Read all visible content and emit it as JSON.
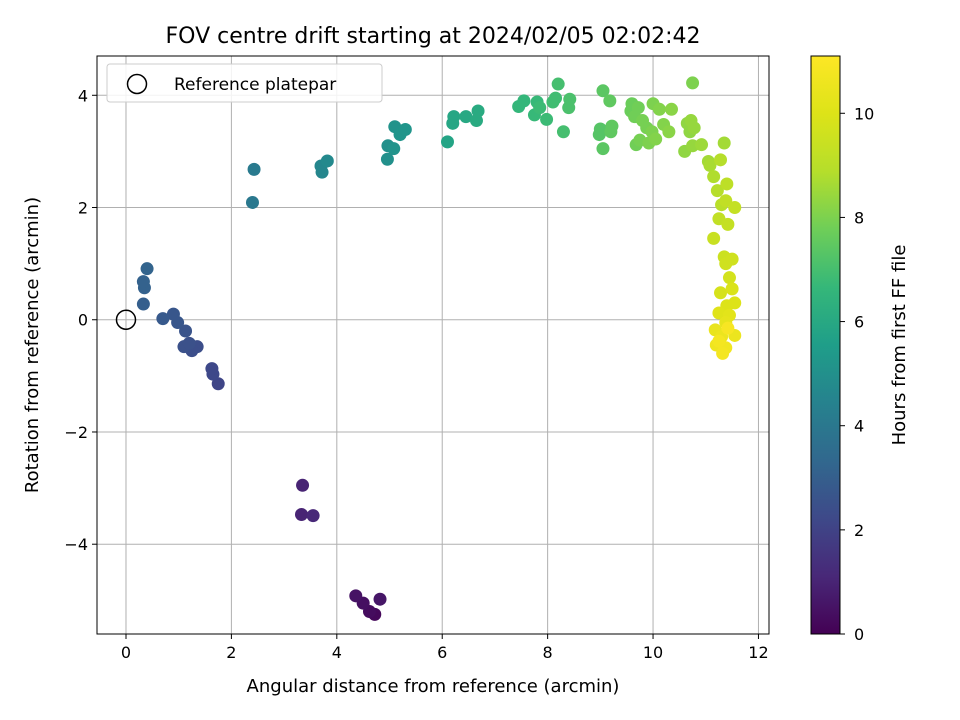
{
  "chart_data": {
    "type": "scatter",
    "title": "FOV centre drift starting at 2024/02/05 02:02:42",
    "xlabel": "Angular distance from reference (arcmin)",
    "ylabel": "Rotation from reference (arcmin)",
    "colorbar_label": "Hours from first FF file",
    "xlim": [
      -0.55,
      12.2
    ],
    "ylim": [
      -5.6,
      4.7
    ],
    "xticks": [
      0,
      2,
      4,
      6,
      8,
      10,
      12
    ],
    "xtick_labels": [
      "0",
      "2",
      "4",
      "6",
      "8",
      "10",
      "12"
    ],
    "yticks": [
      -4,
      -2,
      0,
      2,
      4
    ],
    "ytick_labels": [
      "−4",
      "−2",
      "0",
      "2",
      "4"
    ],
    "colorbar_range": [
      0,
      11.1
    ],
    "colorbar_ticks": [
      0,
      2,
      4,
      6,
      8,
      10
    ],
    "colorbar_tick_labels": [
      "0",
      "2",
      "4",
      "6",
      "8",
      "10"
    ],
    "colormap": "viridis",
    "grid": true,
    "legend": {
      "placement": "top-left",
      "entries": [
        "Reference platepar"
      ]
    },
    "reference_point": {
      "x": 0,
      "y": 0
    },
    "points": [
      {
        "x": 4.72,
        "y": -5.25,
        "c": 0.2
      },
      {
        "x": 4.62,
        "y": -5.2,
        "c": 0.3
      },
      {
        "x": 4.5,
        "y": -5.05,
        "c": 0.4
      },
      {
        "x": 4.36,
        "y": -4.92,
        "c": 0.5
      },
      {
        "x": 4.82,
        "y": -4.98,
        "c": 0.6
      },
      {
        "x": 3.35,
        "y": -2.95,
        "c": 1.0
      },
      {
        "x": 3.33,
        "y": -3.47,
        "c": 1.0
      },
      {
        "x": 3.55,
        "y": -3.49,
        "c": 1.1
      },
      {
        "x": 1.75,
        "y": -1.14,
        "c": 2.1
      },
      {
        "x": 1.65,
        "y": -0.97,
        "c": 2.2
      },
      {
        "x": 1.63,
        "y": -0.87,
        "c": 2.2
      },
      {
        "x": 1.35,
        "y": -0.48,
        "c": 2.4
      },
      {
        "x": 1.25,
        "y": -0.55,
        "c": 2.4
      },
      {
        "x": 1.1,
        "y": -0.48,
        "c": 2.5
      },
      {
        "x": 1.2,
        "y": -0.42,
        "c": 2.5
      },
      {
        "x": 1.13,
        "y": -0.2,
        "c": 2.6
      },
      {
        "x": 0.98,
        "y": -0.05,
        "c": 2.7
      },
      {
        "x": 0.9,
        "y": 0.1,
        "c": 2.7
      },
      {
        "x": 0.7,
        "y": 0.02,
        "c": 2.8
      },
      {
        "x": 0.33,
        "y": 0.28,
        "c": 3.0
      },
      {
        "x": 0.35,
        "y": 0.57,
        "c": 3.1
      },
      {
        "x": 0.33,
        "y": 0.68,
        "c": 3.1
      },
      {
        "x": 0.4,
        "y": 0.91,
        "c": 3.2
      },
      {
        "x": 2.4,
        "y": 2.09,
        "c": 4.0
      },
      {
        "x": 2.43,
        "y": 2.68,
        "c": 4.1
      },
      {
        "x": 3.72,
        "y": 2.63,
        "c": 4.6
      },
      {
        "x": 3.7,
        "y": 2.74,
        "c": 4.6
      },
      {
        "x": 3.82,
        "y": 2.83,
        "c": 4.7
      },
      {
        "x": 4.96,
        "y": 2.86,
        "c": 5.0
      },
      {
        "x": 4.97,
        "y": 3.1,
        "c": 5.0
      },
      {
        "x": 5.08,
        "y": 3.05,
        "c": 5.1
      },
      {
        "x": 5.1,
        "y": 3.44,
        "c": 5.1
      },
      {
        "x": 5.2,
        "y": 3.3,
        "c": 5.2
      },
      {
        "x": 5.3,
        "y": 3.39,
        "c": 5.2
      },
      {
        "x": 6.1,
        "y": 3.17,
        "c": 5.8
      },
      {
        "x": 6.2,
        "y": 3.5,
        "c": 5.9
      },
      {
        "x": 6.22,
        "y": 3.62,
        "c": 5.9
      },
      {
        "x": 6.45,
        "y": 3.62,
        "c": 6.0
      },
      {
        "x": 6.65,
        "y": 3.55,
        "c": 6.1
      },
      {
        "x": 6.68,
        "y": 3.72,
        "c": 6.1
      },
      {
        "x": 7.45,
        "y": 3.8,
        "c": 6.6
      },
      {
        "x": 7.55,
        "y": 3.9,
        "c": 6.6
      },
      {
        "x": 7.75,
        "y": 3.65,
        "c": 6.7
      },
      {
        "x": 7.8,
        "y": 3.88,
        "c": 6.7
      },
      {
        "x": 7.85,
        "y": 3.78,
        "c": 6.8
      },
      {
        "x": 7.98,
        "y": 3.57,
        "c": 6.8
      },
      {
        "x": 8.1,
        "y": 3.88,
        "c": 6.9
      },
      {
        "x": 8.15,
        "y": 3.95,
        "c": 6.9
      },
      {
        "x": 8.2,
        "y": 4.2,
        "c": 7.0
      },
      {
        "x": 8.3,
        "y": 3.35,
        "c": 7.0
      },
      {
        "x": 8.4,
        "y": 3.78,
        "c": 7.1
      },
      {
        "x": 8.42,
        "y": 3.93,
        "c": 7.1
      },
      {
        "x": 8.98,
        "y": 3.3,
        "c": 7.3
      },
      {
        "x": 9.0,
        "y": 3.4,
        "c": 7.3
      },
      {
        "x": 9.05,
        "y": 3.05,
        "c": 7.4
      },
      {
        "x": 9.05,
        "y": 4.08,
        "c": 7.4
      },
      {
        "x": 9.18,
        "y": 3.9,
        "c": 7.5
      },
      {
        "x": 9.2,
        "y": 3.35,
        "c": 7.5
      },
      {
        "x": 9.22,
        "y": 3.45,
        "c": 7.5
      },
      {
        "x": 9.58,
        "y": 3.72,
        "c": 7.7
      },
      {
        "x": 9.6,
        "y": 3.85,
        "c": 7.7
      },
      {
        "x": 9.65,
        "y": 3.62,
        "c": 7.8
      },
      {
        "x": 9.68,
        "y": 3.12,
        "c": 7.8
      },
      {
        "x": 9.72,
        "y": 3.78,
        "c": 7.8
      },
      {
        "x": 9.75,
        "y": 3.2,
        "c": 7.9
      },
      {
        "x": 9.8,
        "y": 3.55,
        "c": 7.9
      },
      {
        "x": 9.88,
        "y": 3.42,
        "c": 7.9
      },
      {
        "x": 9.92,
        "y": 3.15,
        "c": 8.0
      },
      {
        "x": 9.98,
        "y": 3.35,
        "c": 8.0
      },
      {
        "x": 10.0,
        "y": 3.85,
        "c": 8.0
      },
      {
        "x": 10.05,
        "y": 3.22,
        "c": 8.1
      },
      {
        "x": 10.12,
        "y": 3.75,
        "c": 8.1
      },
      {
        "x": 10.2,
        "y": 3.48,
        "c": 8.1
      },
      {
        "x": 10.3,
        "y": 3.35,
        "c": 8.2
      },
      {
        "x": 10.35,
        "y": 3.75,
        "c": 8.2
      },
      {
        "x": 10.6,
        "y": 3.0,
        "c": 8.3
      },
      {
        "x": 10.65,
        "y": 3.5,
        "c": 8.3
      },
      {
        "x": 10.7,
        "y": 3.35,
        "c": 8.3
      },
      {
        "x": 10.72,
        "y": 3.55,
        "c": 8.4
      },
      {
        "x": 10.75,
        "y": 3.1,
        "c": 8.4
      },
      {
        "x": 10.75,
        "y": 4.22,
        "c": 8.0
      },
      {
        "x": 10.78,
        "y": 3.42,
        "c": 8.4
      },
      {
        "x": 10.92,
        "y": 3.12,
        "c": 8.5
      },
      {
        "x": 11.05,
        "y": 2.82,
        "c": 8.6
      },
      {
        "x": 11.08,
        "y": 2.75,
        "c": 8.7
      },
      {
        "x": 11.15,
        "y": 2.55,
        "c": 8.8
      },
      {
        "x": 11.22,
        "y": 2.3,
        "c": 8.9
      },
      {
        "x": 11.28,
        "y": 2.85,
        "c": 8.9
      },
      {
        "x": 11.3,
        "y": 2.05,
        "c": 9.0
      },
      {
        "x": 11.35,
        "y": 3.15,
        "c": 8.6
      },
      {
        "x": 11.4,
        "y": 2.42,
        "c": 9.1
      },
      {
        "x": 11.25,
        "y": 1.8,
        "c": 9.2
      },
      {
        "x": 11.38,
        "y": 2.12,
        "c": 9.2
      },
      {
        "x": 11.42,
        "y": 1.7,
        "c": 9.3
      },
      {
        "x": 11.55,
        "y": 2.0,
        "c": 9.3
      },
      {
        "x": 11.15,
        "y": 1.45,
        "c": 9.4
      },
      {
        "x": 11.35,
        "y": 1.12,
        "c": 9.5
      },
      {
        "x": 11.38,
        "y": 1.0,
        "c": 9.6
      },
      {
        "x": 11.5,
        "y": 1.08,
        "c": 9.6
      },
      {
        "x": 11.45,
        "y": 0.75,
        "c": 9.7
      },
      {
        "x": 11.28,
        "y": 0.48,
        "c": 9.8
      },
      {
        "x": 11.5,
        "y": 0.55,
        "c": 9.9
      },
      {
        "x": 11.55,
        "y": 0.3,
        "c": 10.0
      },
      {
        "x": 11.4,
        "y": 0.25,
        "c": 10.0
      },
      {
        "x": 11.25,
        "y": 0.12,
        "c": 10.1
      },
      {
        "x": 11.45,
        "y": 0.08,
        "c": 10.2
      },
      {
        "x": 11.38,
        "y": -0.05,
        "c": 10.3
      },
      {
        "x": 11.18,
        "y": -0.18,
        "c": 10.4
      },
      {
        "x": 11.55,
        "y": -0.28,
        "c": 10.5
      },
      {
        "x": 11.3,
        "y": -0.3,
        "c": 10.5
      },
      {
        "x": 11.2,
        "y": -0.45,
        "c": 10.6
      },
      {
        "x": 11.38,
        "y": -0.5,
        "c": 10.7
      },
      {
        "x": 11.32,
        "y": -0.6,
        "c": 10.8
      },
      {
        "x": 11.25,
        "y": -0.38,
        "c": 10.8
      },
      {
        "x": 11.42,
        "y": -0.15,
        "c": 10.9
      }
    ]
  }
}
